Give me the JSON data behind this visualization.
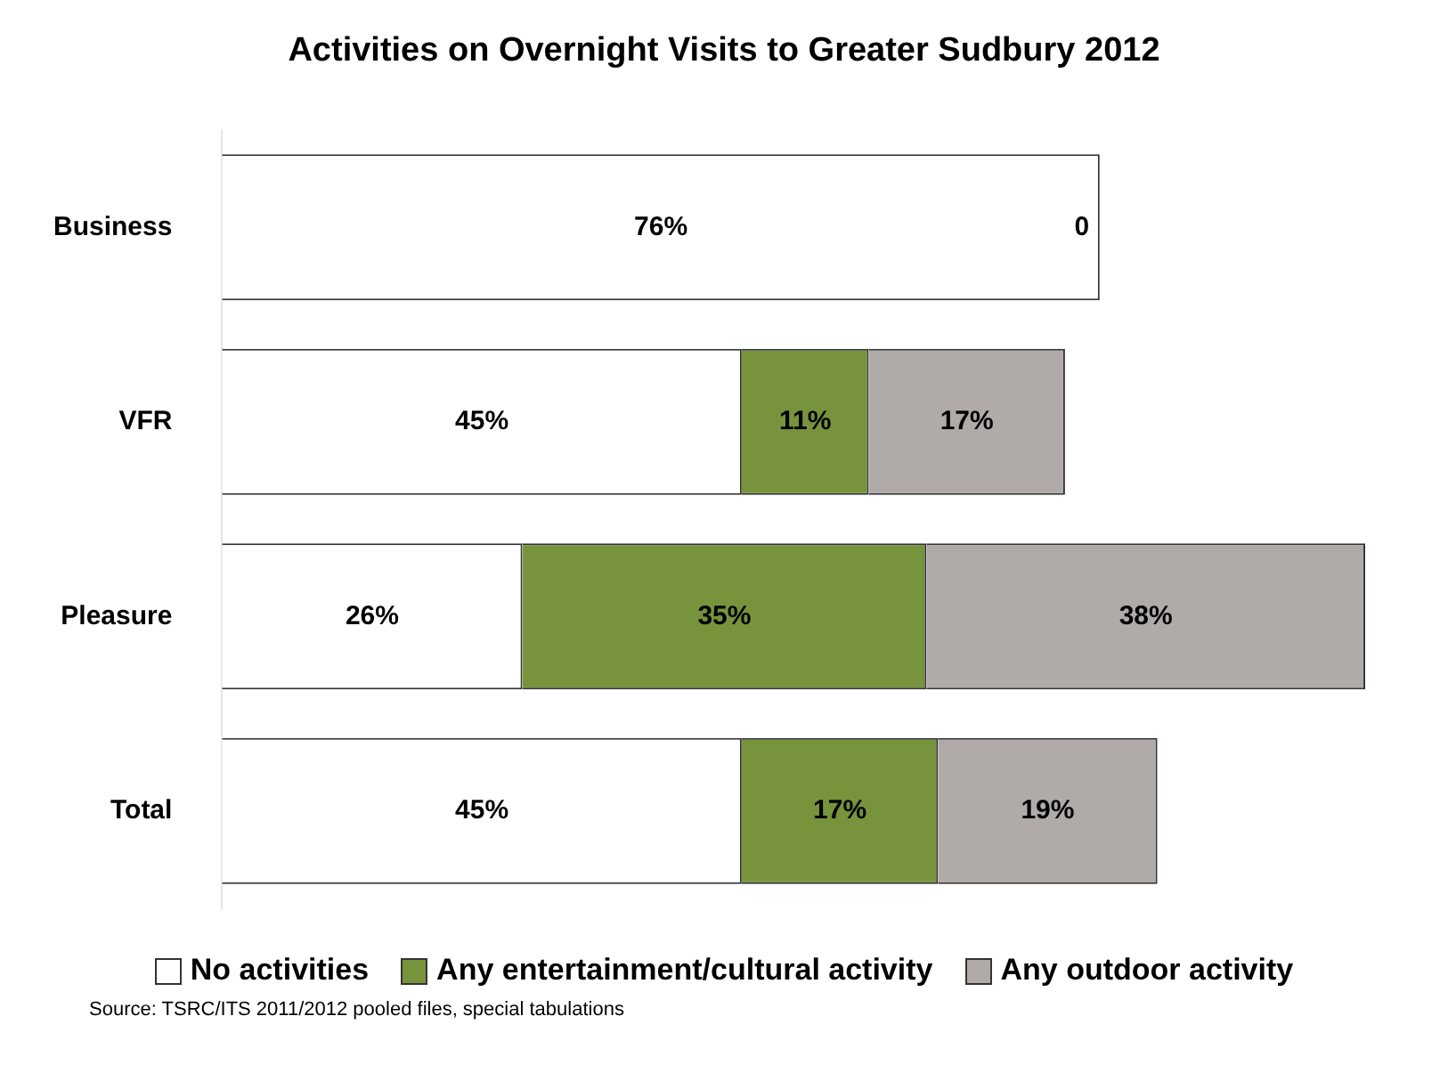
{
  "chart_data": {
    "type": "bar",
    "orientation": "horizontal",
    "stacked": true,
    "title": "Activities on Overnight Visits to Greater Sudbury 2012",
    "categories": [
      "Business",
      "VFR",
      "Pleasure",
      "Total"
    ],
    "series": [
      {
        "name": "No activities",
        "color": "#ffffff",
        "values": [
          76,
          45,
          26,
          45
        ],
        "value_labels": [
          "76%",
          "45%",
          "26%",
          "45%"
        ]
      },
      {
        "name": "Any entertainment/cultural activity",
        "color": "#77933c",
        "values": [
          0,
          11,
          35,
          17
        ],
        "value_labels": [
          "0",
          "11%",
          "35%",
          "17%"
        ]
      },
      {
        "name": "Any outdoor activity",
        "color": "#b0aba8",
        "values": [
          null,
          17,
          38,
          19
        ],
        "value_labels": [
          null,
          "17%",
          "38%",
          "19%"
        ]
      }
    ],
    "legend": "bottom",
    "grid": false,
    "tick_labels": "y",
    "annotations": [
      "Source:  TSRC/ITS 2011/2012 pooled files, special tabulations"
    ]
  }
}
